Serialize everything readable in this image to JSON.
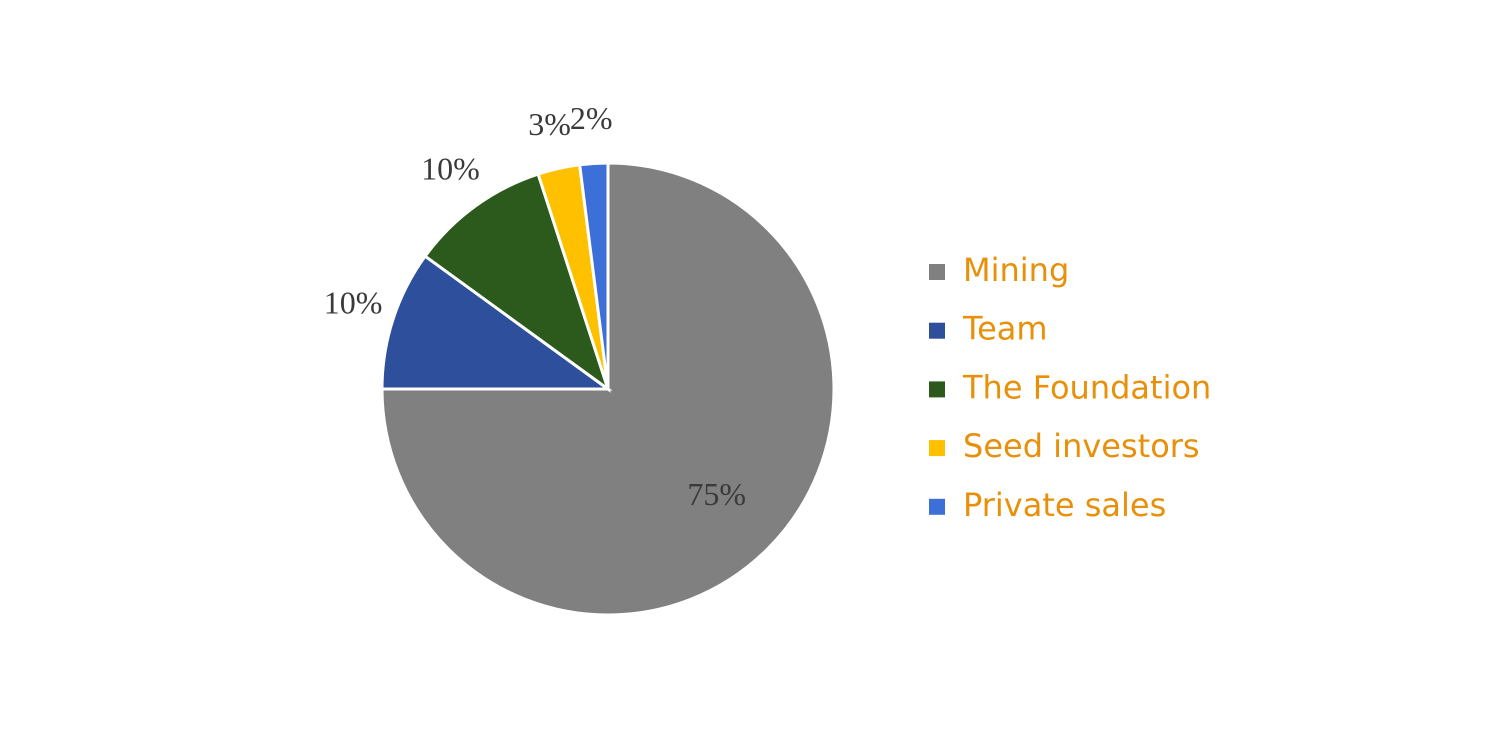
{
  "chart_data": {
    "type": "pie",
    "categories": [
      "Mining",
      "Team",
      "The Foundation",
      "Seed investors",
      "Private sales"
    ],
    "values": [
      75,
      10,
      10,
      3,
      2
    ],
    "value_labels": [
      "75%",
      "10%",
      "10%",
      "3%",
      "2%"
    ],
    "colors": [
      "#808080",
      "#2e4f9b",
      "#2c5a1c",
      "#ffc000",
      "#3d6fd8"
    ],
    "legend": "right"
  }
}
